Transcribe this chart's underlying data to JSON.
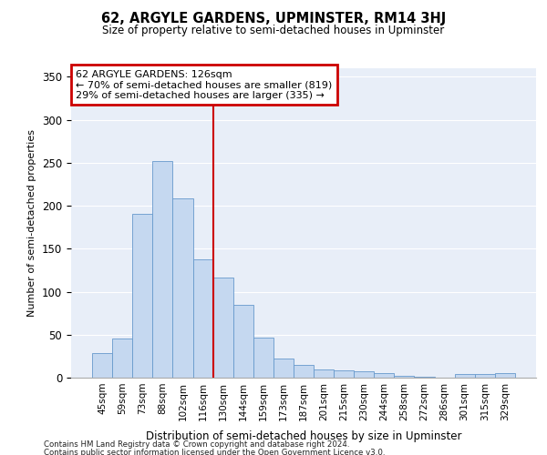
{
  "title": "62, ARGYLE GARDENS, UPMINSTER, RM14 3HJ",
  "subtitle": "Size of property relative to semi-detached houses in Upminster",
  "xlabel": "Distribution of semi-detached houses by size in Upminster",
  "ylabel": "Number of semi-detached properties",
  "categories": [
    "45sqm",
    "59sqm",
    "73sqm",
    "88sqm",
    "102sqm",
    "116sqm",
    "130sqm",
    "144sqm",
    "159sqm",
    "173sqm",
    "187sqm",
    "201sqm",
    "215sqm",
    "230sqm",
    "244sqm",
    "258sqm",
    "272sqm",
    "286sqm",
    "301sqm",
    "315sqm",
    "329sqm"
  ],
  "values": [
    29,
    46,
    191,
    252,
    209,
    138,
    117,
    85,
    47,
    22,
    15,
    10,
    9,
    7,
    5,
    2,
    1,
    0,
    4,
    4,
    5
  ],
  "bar_color": "#c5d8f0",
  "bar_edge_color": "#6699cc",
  "vline_x": 6.0,
  "vline_color": "#cc0000",
  "annotation_title": "62 ARGYLE GARDENS: 126sqm",
  "annotation_line1": "← 70% of semi-detached houses are smaller (819)",
  "annotation_line2": "29% of semi-detached houses are larger (335) →",
  "annotation_box_color": "#cc0000",
  "ylim": [
    0,
    360
  ],
  "yticks": [
    0,
    50,
    100,
    150,
    200,
    250,
    300,
    350
  ],
  "footnote1": "Contains HM Land Registry data © Crown copyright and database right 2024.",
  "footnote2": "Contains public sector information licensed under the Open Government Licence v3.0.",
  "plot_bg_color": "#e8eef8"
}
